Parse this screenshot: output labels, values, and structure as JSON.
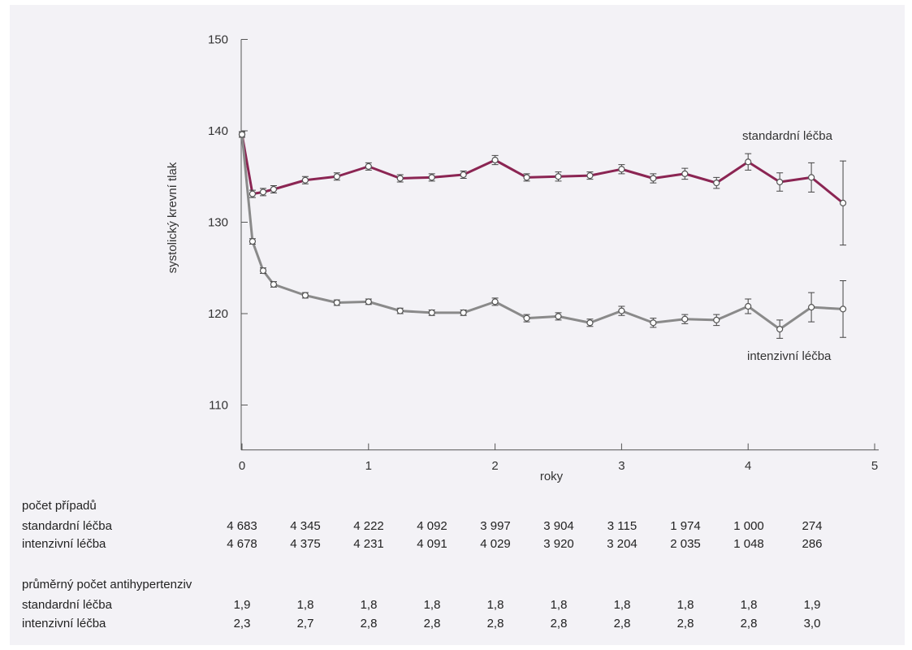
{
  "colors": {
    "standard": "#8b2553",
    "intensive": "#8a8a8a",
    "axis": "#555555",
    "panel": "#f3f2f6"
  },
  "chart_data": {
    "type": "line",
    "title": "",
    "xlabel": "roky",
    "ylabel": "systolický krevní tlak",
    "xlim": [
      0,
      5
    ],
    "ylim": [
      105,
      150
    ],
    "xticks": [
      0,
      1,
      2,
      3,
      4,
      5
    ],
    "yticks": [
      110,
      120,
      130,
      140,
      150
    ],
    "grid": false,
    "legend": "inline labels",
    "series": [
      {
        "name": "standardní léčba",
        "color": "#8b2553",
        "x": [
          0,
          0.083,
          0.167,
          0.25,
          0.5,
          0.75,
          1.0,
          1.25,
          1.5,
          1.75,
          2.0,
          2.25,
          2.5,
          2.75,
          3.0,
          3.25,
          3.5,
          3.75,
          4.0,
          4.25,
          4.5,
          4.75
        ],
        "y": [
          139.6,
          133.1,
          133.3,
          133.6,
          134.6,
          135.0,
          136.1,
          134.8,
          134.9,
          135.2,
          136.8,
          134.9,
          135.0,
          135.1,
          135.8,
          134.8,
          135.3,
          134.3,
          136.6,
          134.4,
          134.9,
          132.1
        ],
        "err": [
          0.3,
          0.4,
          0.4,
          0.4,
          0.4,
          0.4,
          0.4,
          0.4,
          0.4,
          0.4,
          0.5,
          0.4,
          0.5,
          0.4,
          0.5,
          0.5,
          0.6,
          0.6,
          0.9,
          1.0,
          1.6,
          4.6
        ]
      },
      {
        "name": "intenzivní léčba",
        "color": "#8a8a8a",
        "x": [
          0,
          0.083,
          0.167,
          0.25,
          0.5,
          0.75,
          1.0,
          1.25,
          1.5,
          1.75,
          2.0,
          2.25,
          2.5,
          2.75,
          3.0,
          3.25,
          3.5,
          3.75,
          4.0,
          4.25,
          4.5,
          4.75
        ],
        "y": [
          139.6,
          127.9,
          124.7,
          123.2,
          122.0,
          121.2,
          121.3,
          120.3,
          120.1,
          120.1,
          121.3,
          119.5,
          119.7,
          119.0,
          120.3,
          119.0,
          119.4,
          119.3,
          120.8,
          118.3,
          120.7,
          120.5
        ],
        "err": [
          0.3,
          0.3,
          0.3,
          0.3,
          0.3,
          0.3,
          0.3,
          0.3,
          0.3,
          0.3,
          0.4,
          0.4,
          0.4,
          0.4,
          0.5,
          0.5,
          0.5,
          0.6,
          0.8,
          1.0,
          1.6,
          3.1
        ]
      }
    ]
  },
  "tables": {
    "cases": {
      "title": "počet případů",
      "rows": [
        {
          "label": "standardní léčba",
          "values": [
            "4 683",
            "4 345",
            "4 222",
            "4 092",
            "3 997",
            "3 904",
            "3 115",
            "1 974",
            "1 000",
            "274"
          ]
        },
        {
          "label": "intenzivní léčba",
          "values": [
            "4 678",
            "4 375",
            "4 231",
            "4 091",
            "4 029",
            "3 920",
            "3 204",
            "2 035",
            "1 048",
            "286"
          ]
        }
      ]
    },
    "drugs": {
      "title": "průměrný počet antihypertenziv",
      "rows": [
        {
          "label": "standardní léčba",
          "values": [
            "1,9",
            "1,8",
            "1,8",
            "1,8",
            "1,8",
            "1,8",
            "1,8",
            "1,8",
            "1,8",
            "1,9"
          ]
        },
        {
          "label": "intenzivní léčba",
          "values": [
            "2,3",
            "2,7",
            "2,8",
            "2,8",
            "2,8",
            "2,8",
            "2,8",
            "2,8",
            "2,8",
            "3,0"
          ]
        }
      ]
    }
  }
}
